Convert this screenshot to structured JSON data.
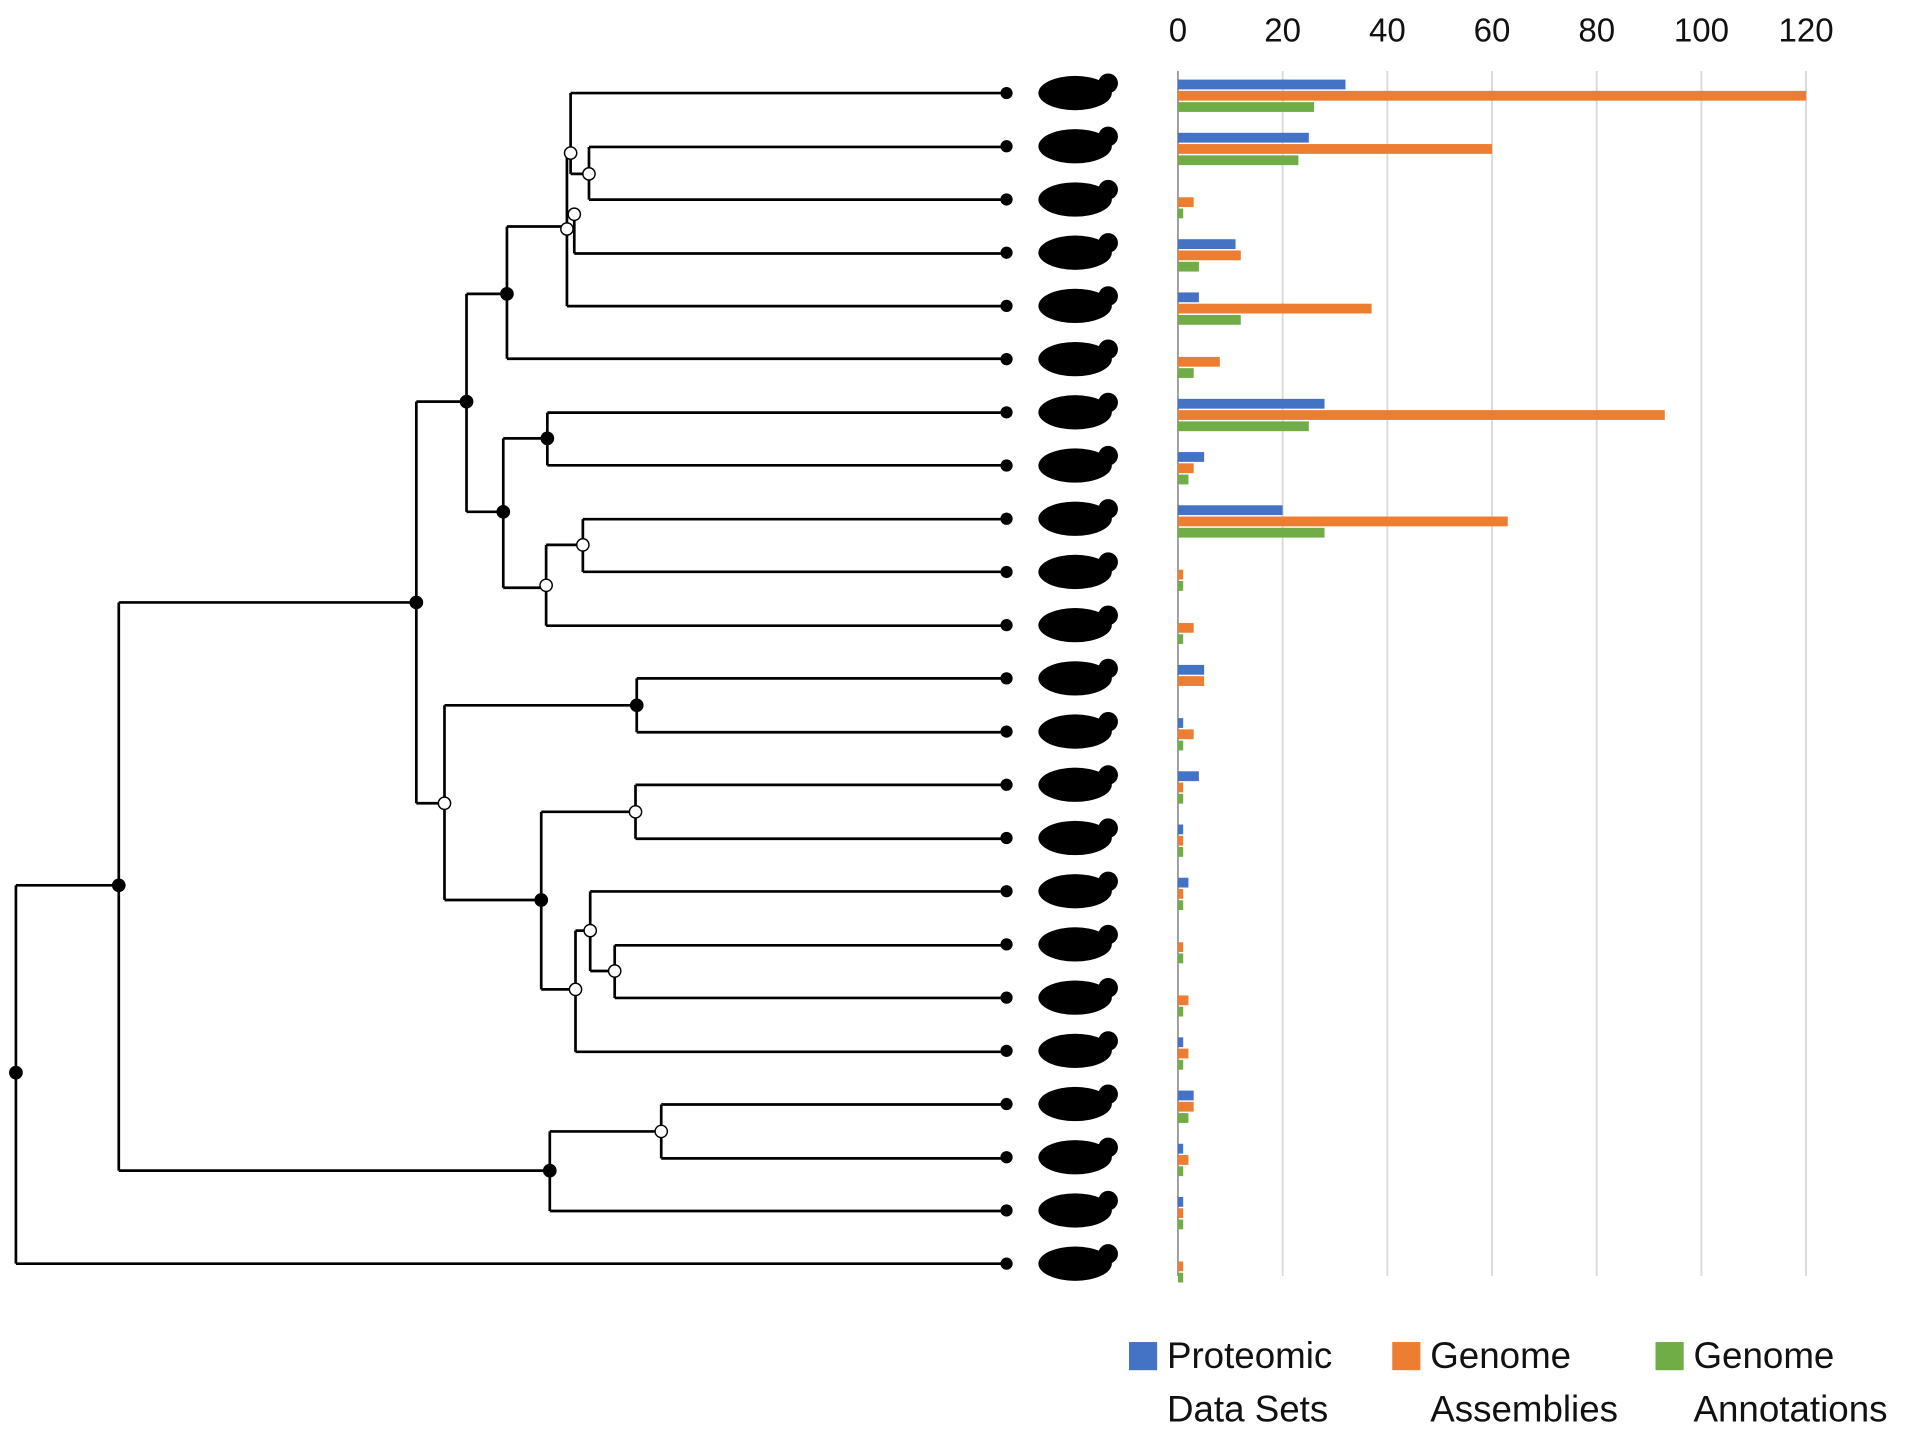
{
  "chart_data": {
    "type": "barh",
    "categories": [
      null,
      null,
      null,
      null,
      null,
      null,
      null,
      null,
      null,
      null,
      null,
      null,
      null,
      null,
      null,
      null,
      null,
      null,
      null,
      null,
      null,
      null,
      null
    ],
    "series": [
      {
        "name": "Proteomic Data Sets",
        "color": "#4472c4",
        "values": [
          32,
          25,
          0,
          11,
          4,
          0,
          28,
          5,
          20,
          0,
          0,
          5,
          1,
          4,
          1,
          2,
          0,
          0,
          1,
          3,
          1,
          1,
          0
        ]
      },
      {
        "name": "Genome Assemblies",
        "color": "#ed7d31",
        "values": [
          120,
          60,
          3,
          12,
          37,
          8,
          93,
          3,
          63,
          1,
          3,
          5,
          3,
          1,
          1,
          1,
          1,
          2,
          2,
          3,
          2,
          1,
          1
        ]
      },
      {
        "name": "Genome Annotations",
        "color": "#70ad47",
        "values": [
          26,
          23,
          1,
          4,
          12,
          3,
          25,
          2,
          28,
          1,
          1,
          0,
          1,
          1,
          1,
          1,
          1,
          1,
          1,
          2,
          1,
          1,
          1
        ]
      }
    ],
    "xlim": [
      0,
      120
    ],
    "xticks": [
      0,
      20,
      40,
      60,
      80,
      100,
      120
    ],
    "grid": true
  }
}
